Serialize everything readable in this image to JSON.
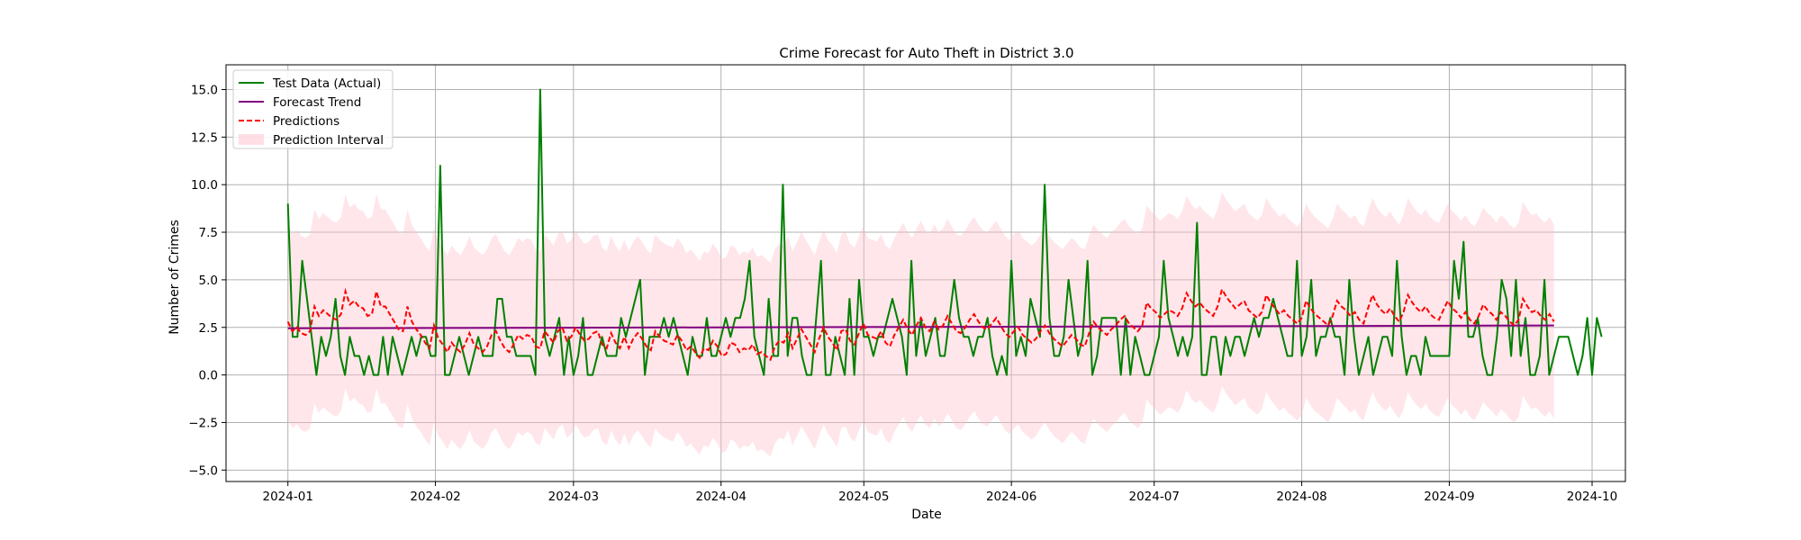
{
  "chart_data": {
    "type": "line",
    "title": "Crime Forecast for Auto Theft in District 3.0",
    "xlabel": "Date",
    "ylabel": "Number of Crimes",
    "x_range": [
      "2023-12-19",
      "2024-10-08"
    ],
    "ylim": [
      -5.6,
      16.3
    ],
    "x_ticks": [
      "2024-01",
      "2024-02",
      "2024-03",
      "2024-04",
      "2024-05",
      "2024-06",
      "2024-07",
      "2024-08",
      "2024-09",
      "2024-10"
    ],
    "y_ticks": [
      -5.0,
      -2.5,
      0.0,
      2.5,
      5.0,
      7.5,
      10.0,
      12.5,
      15.0
    ],
    "y_tick_labels": [
      "−5.0",
      "−2.5",
      "0.0",
      "2.5",
      "5.0",
      "7.5",
      "10.0",
      "12.5",
      "15.0"
    ],
    "grid": true,
    "legend_position": "top-left",
    "series": [
      {
        "name": "Test Data (Actual)",
        "style": "solid",
        "color": "#008000",
        "start_date": "2024-01-01",
        "values": [
          9,
          2,
          2,
          6,
          4,
          2,
          0,
          2,
          1,
          2,
          4,
          1,
          0,
          2,
          1,
          1,
          0,
          1,
          0,
          0,
          2,
          0,
          2,
          1,
          0,
          1,
          2,
          1,
          2,
          2,
          1,
          1,
          11,
          0,
          0,
          1,
          2,
          1,
          0,
          1,
          2,
          1,
          1,
          1,
          4,
          4,
          2,
          2,
          1,
          1,
          1,
          1,
          0,
          15,
          2,
          1,
          2,
          3,
          0,
          2,
          0,
          1,
          3,
          0,
          0,
          1,
          2,
          1,
          1,
          1,
          3,
          2,
          3,
          4,
          5,
          0,
          2,
          2,
          2,
          3,
          2,
          3,
          2,
          1,
          0,
          2,
          1,
          1,
          3,
          1,
          1,
          2,
          3,
          2,
          3,
          3,
          4,
          6,
          2,
          1,
          0,
          4,
          1,
          1,
          10,
          1,
          3,
          3,
          1,
          0,
          0,
          3,
          6,
          0,
          0,
          2,
          1,
          0,
          4,
          0,
          5,
          2,
          2,
          1,
          2,
          2,
          3,
          4,
          3,
          2,
          0,
          6,
          1,
          3,
          1,
          2,
          3,
          1,
          1,
          3,
          5,
          3,
          2,
          2,
          1,
          2,
          2,
          3,
          1,
          0,
          1,
          0,
          6,
          1,
          2,
          1,
          4,
          3,
          2,
          10,
          3,
          1,
          1,
          2,
          5,
          3,
          1,
          2,
          6,
          0,
          1,
          3,
          3,
          3,
          3,
          0,
          3,
          0,
          2,
          1,
          0,
          0,
          1,
          2,
          6,
          3,
          2,
          1,
          2,
          1,
          2,
          8,
          0,
          0,
          2,
          2,
          0,
          2,
          1,
          2,
          2,
          1,
          2,
          3,
          2,
          3,
          3,
          4,
          3,
          2,
          1,
          1,
          6,
          1,
          2,
          5,
          1,
          2,
          2,
          3,
          2,
          2,
          0,
          5,
          2,
          0,
          1,
          2,
          0,
          1,
          2,
          2,
          1,
          6,
          2,
          0,
          1,
          1,
          0,
          2,
          1,
          1,
          1,
          1,
          1,
          6,
          4,
          7,
          2,
          2,
          3,
          1,
          0,
          0,
          2,
          5,
          4,
          1,
          5,
          1,
          3,
          0,
          0,
          1,
          5,
          0,
          1,
          2,
          2,
          2,
          1,
          0,
          1,
          3,
          0,
          3,
          2
        ],
        "values_note": ""
      },
      {
        "name": "Forecast Trend",
        "style": "solid",
        "color": "#800080",
        "x": [
          "2024-01-01",
          "2024-09-23"
        ],
        "values": [
          2.45,
          2.6
        ]
      },
      {
        "name": "Predictions",
        "style": "dashed",
        "color": "#ff0000",
        "x_range": [
          "2024-01-01",
          "2024-09-23"
        ],
        "values": [
          2.8,
          2.3,
          2.5,
          2.2,
          2.1,
          2.3,
          3.6,
          3.1,
          3.4,
          3.2,
          3.0,
          2.9,
          3.2,
          4.4,
          3.7,
          3.9,
          3.6,
          3.5,
          3.1,
          3.2,
          4.4,
          3.6,
          3.6,
          3.2,
          2.8,
          2.4,
          2.3,
          3.6,
          2.8,
          2.4,
          2.1,
          1.7,
          1.4,
          2.6,
          1.9,
          1.6,
          1.2,
          1.7,
          1.4,
          1.2,
          1.6,
          2.2,
          1.6,
          1.4,
          1.2,
          1.5,
          2.1,
          2.3,
          1.8,
          1.4,
          1.2,
          1.6,
          2.1,
          1.9,
          2.1,
          2.0,
          1.5,
          1.4,
          2.3,
          2.0,
          1.7,
          2.3,
          2.5,
          1.8,
          2.0,
          2.5,
          2.1,
          1.8,
          1.9,
          2.2,
          2.3,
          1.6,
          1.4,
          2.2,
          1.7,
          1.4,
          2.0,
          1.4,
          1.9,
          2.2,
          1.9,
          1.5,
          1.3,
          2.3,
          2.0,
          1.8,
          1.7,
          1.6,
          2.1,
          1.8,
          1.3,
          1.5,
          1.2,
          0.9,
          1.4,
          1.3,
          1.8,
          1.5,
          1.0,
          1.1,
          1.7,
          1.6,
          1.2,
          1.4,
          1.3,
          1.6,
          1.1,
          1.2,
          1.0,
          0.8,
          1.5,
          1.8,
          1.7,
          2.2,
          1.4,
          1.9,
          2.4,
          2.0,
          1.6,
          1.2,
          1.9,
          2.5,
          2.0,
          1.7,
          1.3,
          2.3,
          2.4,
          1.8,
          1.6,
          2.2,
          2.7,
          2.1,
          2.0,
          1.9,
          2.3,
          1.7,
          1.5,
          2.1,
          2.5,
          2.9,
          2.4,
          2.1,
          2.6,
          3.0,
          2.5,
          2.3,
          2.8,
          2.4,
          2.6,
          3.1,
          2.7,
          2.3,
          2.2,
          2.5,
          2.9,
          3.2,
          2.8,
          2.5,
          2.4,
          2.7,
          3.0,
          2.6,
          2.2,
          2.0,
          2.3,
          2.5,
          2.1,
          1.9,
          1.7,
          1.9,
          2.3,
          2.6,
          2.2,
          1.9,
          1.7,
          1.5,
          1.8,
          2.1,
          1.9,
          1.6,
          1.5,
          2.2,
          2.8,
          2.5,
          2.3,
          2.1,
          2.4,
          2.6,
          2.9,
          3.1,
          2.7,
          2.5,
          2.3,
          2.6,
          3.8,
          3.5,
          3.3,
          3.0,
          3.2,
          3.4,
          3.3,
          3.1,
          3.5,
          4.3,
          3.9,
          3.6,
          3.8,
          3.5,
          3.3,
          3.1,
          3.6,
          4.5,
          4.1,
          3.8,
          3.5,
          3.7,
          3.9,
          3.4,
          3.2,
          3.0,
          3.3,
          4.2,
          3.8,
          3.5,
          3.2,
          3.4,
          3.1,
          2.9,
          2.7,
          3.0,
          3.9,
          3.5,
          3.2,
          3.0,
          2.8,
          2.6,
          3.1,
          3.9,
          3.6,
          3.4,
          3.1,
          3.3,
          2.9,
          2.7,
          3.5,
          4.2,
          3.7,
          3.4,
          3.2,
          3.5,
          3.1,
          2.8,
          3.3,
          4.2,
          3.8,
          3.5,
          3.3,
          3.6,
          3.2,
          3.0,
          2.9,
          3.4,
          3.9,
          3.5,
          3.3,
          3.0,
          3.3,
          2.9,
          2.7,
          3.1,
          3.7,
          3.4,
          3.2,
          2.9,
          3.3,
          3.1,
          2.8,
          2.6,
          2.9,
          4.0,
          3.6,
          3.3,
          3.4,
          3.1,
          2.9,
          3.2,
          2.8
        ]
      },
      {
        "name": "Prediction Interval",
        "style": "band",
        "color": "#ffc0cb",
        "half_width": 5.1
      }
    ]
  }
}
